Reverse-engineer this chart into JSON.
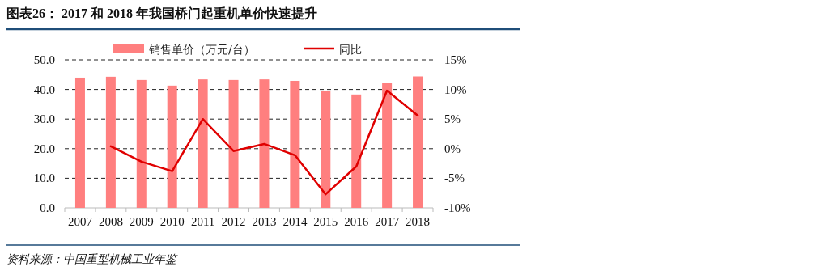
{
  "chart_data": {
    "type": "bar",
    "title": "图表26：  2017 和 2018 年我国桥门起重机单价快速提升",
    "categories": [
      "2007",
      "2008",
      "2009",
      "2010",
      "2011",
      "2012",
      "2013",
      "2014",
      "2015",
      "2016",
      "2017",
      "2018"
    ],
    "series": [
      {
        "name": "销售单价（万元/台）",
        "color": "#ff7f7f",
        "values": [
          44.0,
          44.3,
          43.2,
          41.3,
          43.4,
          43.2,
          43.4,
          42.9,
          39.6,
          38.3,
          42.1,
          44.4
        ]
      },
      {
        "name": "同比",
        "type": "line",
        "axis": "y2",
        "color": "#e00000",
        "values": [
          null,
          0.4,
          -2.2,
          -3.8,
          5.0,
          -0.4,
          0.8,
          -1.1,
          -7.7,
          -3.0,
          9.8,
          5.6
        ]
      }
    ],
    "ylim": [
      0,
      50
    ],
    "yticks": [
      {
        "value": 0,
        "label": "0.0"
      },
      {
        "value": 10,
        "label": "10.0"
      },
      {
        "value": 20,
        "label": "20.0"
      },
      {
        "value": 30,
        "label": "30.0"
      },
      {
        "value": 40,
        "label": "40.0"
      },
      {
        "value": 50,
        "label": "50.0"
      }
    ],
    "y2lim": [
      -10,
      15
    ],
    "y2ticks": [
      {
        "value": -10,
        "label": "-10%"
      },
      {
        "value": -5,
        "label": "-5%"
      },
      {
        "value": 0,
        "label": "0%"
      },
      {
        "value": 5,
        "label": "5%"
      },
      {
        "value": 10,
        "label": "10%"
      },
      {
        "value": 15,
        "label": "15%"
      }
    ],
    "grid": "y",
    "legend": "top",
    "marker": "none",
    "line_style": "solid",
    "annotations": [
      "资料来源：中国重型机械工业年鉴"
    ]
  }
}
